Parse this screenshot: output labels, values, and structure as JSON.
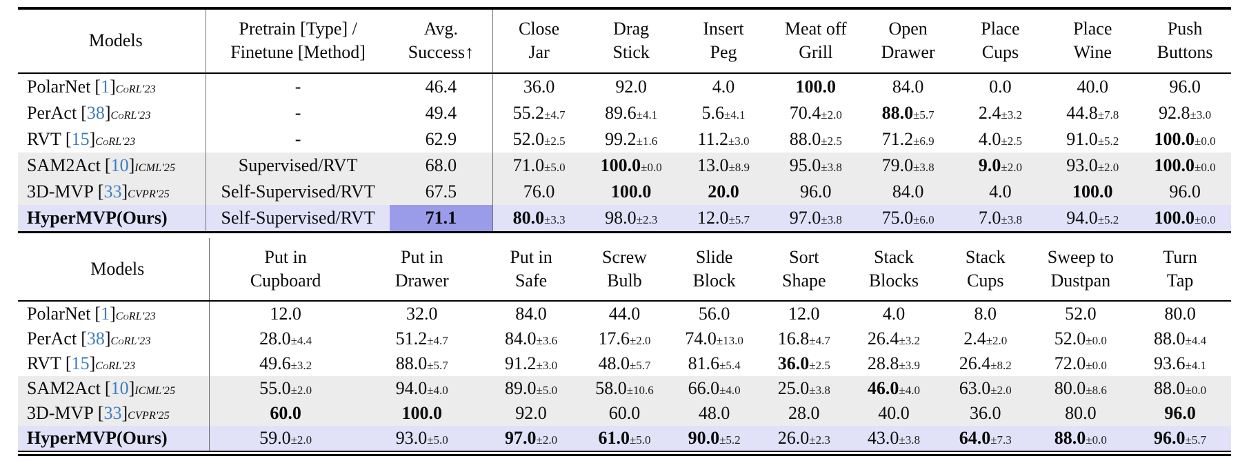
{
  "colors": {
    "citation_blue": "#3d7dbf",
    "row_shade_gray": "#ececec",
    "row_highlight_lavender": "#e1e2f8",
    "avg_cell_highlight": "#9b9ce9"
  },
  "citation_brackets": {
    "open": "[",
    "close": "]"
  },
  "table1": {
    "models_header": "Models",
    "pretrain_header": [
      "Pretrain [Type] /",
      "Finetune [Method]"
    ],
    "avg_header": [
      "Avg.",
      "Success↑"
    ],
    "task_headers": [
      [
        "Close",
        "Jar"
      ],
      [
        "Drag",
        "Stick"
      ],
      [
        "Insert",
        "Peg"
      ],
      [
        "Meat off",
        "Grill"
      ],
      [
        "Open",
        "Drawer"
      ],
      [
        "Place",
        "Cups"
      ],
      [
        "Place",
        "Wine"
      ],
      [
        "Push",
        "Buttons"
      ]
    ],
    "rows": [
      {
        "model": "PolarNet",
        "cite_num": "1",
        "venue": "CoRL'23",
        "model_bold": false,
        "bg": "white",
        "pretrain": "-",
        "avg": {
          "v": "46.4",
          "bold": false,
          "hl": false
        },
        "cells": [
          {
            "v": "36.0"
          },
          {
            "v": "92.0"
          },
          {
            "v": "4.0"
          },
          {
            "v": "100.0",
            "bold": true
          },
          {
            "v": "84.0"
          },
          {
            "v": "0.0"
          },
          {
            "v": "40.0"
          },
          {
            "v": "96.0"
          }
        ]
      },
      {
        "model": "PerAct",
        "cite_num": "38",
        "venue": "CoRL'23",
        "model_bold": false,
        "bg": "white",
        "pretrain": "-",
        "avg": {
          "v": "49.4",
          "bold": false,
          "hl": false
        },
        "cells": [
          {
            "v": "55.2",
            "pm": "±4.7"
          },
          {
            "v": "89.6",
            "pm": "±4.1"
          },
          {
            "v": "5.6",
            "pm": "±4.1"
          },
          {
            "v": "70.4",
            "pm": "±2.0"
          },
          {
            "v": "88.0",
            "pm": "±5.7",
            "bold": true
          },
          {
            "v": "2.4",
            "pm": "±3.2"
          },
          {
            "v": "44.8",
            "pm": "±7.8"
          },
          {
            "v": "92.8",
            "pm": "±3.0"
          }
        ]
      },
      {
        "model": "RVT",
        "cite_num": "15",
        "venue": "CoRL'23",
        "model_bold": false,
        "bg": "white",
        "pretrain": "-",
        "avg": {
          "v": "62.9",
          "bold": false,
          "hl": false
        },
        "cells": [
          {
            "v": "52.0",
            "pm": "±2.5"
          },
          {
            "v": "99.2",
            "pm": "±1.6"
          },
          {
            "v": "11.2",
            "pm": "±3.0"
          },
          {
            "v": "88.0",
            "pm": "±2.5"
          },
          {
            "v": "71.2",
            "pm": "±6.9"
          },
          {
            "v": "4.0",
            "pm": "±2.5"
          },
          {
            "v": "91.0",
            "pm": "±5.2"
          },
          {
            "v": "100.0",
            "pm": "±0.0",
            "bold": true
          }
        ]
      },
      {
        "model": "SAM2Act",
        "cite_num": "10",
        "venue": "ICML'25",
        "model_bold": false,
        "bg": "gray",
        "pretrain": "Supervised/RVT",
        "avg": {
          "v": "68.0",
          "bold": false,
          "hl": false
        },
        "cells": [
          {
            "v": "71.0",
            "pm": "±5.0"
          },
          {
            "v": "100.0",
            "pm": "±0.0",
            "bold": true
          },
          {
            "v": "13.0",
            "pm": "±8.9"
          },
          {
            "v": "95.0",
            "pm": "±3.8"
          },
          {
            "v": "79.0",
            "pm": "±3.8"
          },
          {
            "v": "9.0",
            "pm": "±2.0",
            "bold": true
          },
          {
            "v": "93.0",
            "pm": "±2.0"
          },
          {
            "v": "100.0",
            "pm": "±0.0",
            "bold": true
          }
        ]
      },
      {
        "model": "3D-MVP",
        "cite_num": "33",
        "venue": "CVPR'25",
        "model_bold": false,
        "bg": "gray",
        "pretrain": "Self-Supervised/RVT",
        "avg": {
          "v": "67.5",
          "bold": false,
          "hl": false
        },
        "cells": [
          {
            "v": "76.0"
          },
          {
            "v": "100.0",
            "bold": true
          },
          {
            "v": "20.0",
            "bold": true
          },
          {
            "v": "96.0"
          },
          {
            "v": "84.0"
          },
          {
            "v": "4.0"
          },
          {
            "v": "100.0",
            "bold": true
          },
          {
            "v": "96.0"
          }
        ]
      },
      {
        "model": "HyperMVP(Ours)",
        "cite_num": "",
        "venue": "",
        "model_bold": true,
        "bg": "lavender",
        "pretrain": "Self-Supervised/RVT",
        "avg": {
          "v": "71.1",
          "bold": true,
          "hl": true
        },
        "cells": [
          {
            "v": "80.0",
            "pm": "±3.3",
            "bold": true
          },
          {
            "v": "98.0",
            "pm": "±2.3"
          },
          {
            "v": "12.0",
            "pm": "±5.7"
          },
          {
            "v": "97.0",
            "pm": "±3.8"
          },
          {
            "v": "75.0",
            "pm": "±6.0"
          },
          {
            "v": "7.0",
            "pm": "±3.8"
          },
          {
            "v": "94.0",
            "pm": "±5.2"
          },
          {
            "v": "100.0",
            "pm": "±0.0",
            "bold": true
          }
        ]
      }
    ]
  },
  "table2": {
    "models_header": "Models",
    "task_headers": [
      [
        "Put in",
        "Cupboard"
      ],
      [
        "Put in",
        "Drawer"
      ],
      [
        "Put in",
        "Safe"
      ],
      [
        "Screw",
        "Bulb"
      ],
      [
        "Slide",
        "Block"
      ],
      [
        "Sort",
        "Shape"
      ],
      [
        "Stack",
        "Blocks"
      ],
      [
        "Stack",
        "Cups"
      ],
      [
        "Sweep to",
        "Dustpan"
      ],
      [
        "Turn",
        "Tap"
      ]
    ],
    "rows": [
      {
        "model": "PolarNet",
        "cite_num": "1",
        "venue": "CoRL'23",
        "model_bold": false,
        "bg": "white",
        "cells": [
          {
            "v": "12.0"
          },
          {
            "v": "32.0"
          },
          {
            "v": "84.0"
          },
          {
            "v": "44.0"
          },
          {
            "v": "56.0"
          },
          {
            "v": "12.0"
          },
          {
            "v": "4.0"
          },
          {
            "v": "8.0"
          },
          {
            "v": "52.0"
          },
          {
            "v": "80.0"
          }
        ]
      },
      {
        "model": "PerAct",
        "cite_num": "38",
        "venue": "CoRL'23",
        "model_bold": false,
        "bg": "white",
        "cells": [
          {
            "v": "28.0",
            "pm": "±4.4"
          },
          {
            "v": "51.2",
            "pm": "±4.7"
          },
          {
            "v": "84.0",
            "pm": "±3.6"
          },
          {
            "v": "17.6",
            "pm": "±2.0"
          },
          {
            "v": "74.0",
            "pm": "±13.0"
          },
          {
            "v": "16.8",
            "pm": "±4.7"
          },
          {
            "v": "26.4",
            "pm": "±3.2"
          },
          {
            "v": "2.4",
            "pm": "±2.0"
          },
          {
            "v": "52.0",
            "pm": "±0.0"
          },
          {
            "v": "88.0",
            "pm": "±4.4"
          }
        ]
      },
      {
        "model": "RVT",
        "cite_num": "15",
        "venue": "CoRL'23",
        "model_bold": false,
        "bg": "white",
        "cells": [
          {
            "v": "49.6",
            "pm": "±3.2"
          },
          {
            "v": "88.0",
            "pm": "±5.7"
          },
          {
            "v": "91.2",
            "pm": "±3.0"
          },
          {
            "v": "48.0",
            "pm": "±5.7"
          },
          {
            "v": "81.6",
            "pm": "±5.4"
          },
          {
            "v": "36.0",
            "pm": "±2.5",
            "bold": true
          },
          {
            "v": "28.8",
            "pm": "±3.9"
          },
          {
            "v": "26.4",
            "pm": "±8.2"
          },
          {
            "v": "72.0",
            "pm": "±0.0"
          },
          {
            "v": "93.6",
            "pm": "±4.1"
          }
        ]
      },
      {
        "model": "SAM2Act",
        "cite_num": "10",
        "venue": "ICML'25",
        "model_bold": false,
        "bg": "gray",
        "cells": [
          {
            "v": "55.0",
            "pm": "±2.0"
          },
          {
            "v": "94.0",
            "pm": "±4.0"
          },
          {
            "v": "89.0",
            "pm": "±5.0"
          },
          {
            "v": "58.0",
            "pm": "±10.6"
          },
          {
            "v": "66.0",
            "pm": "±4.0"
          },
          {
            "v": "25.0",
            "pm": "±3.8"
          },
          {
            "v": "46.0",
            "pm": "±4.0",
            "bold": true
          },
          {
            "v": "63.0",
            "pm": "±2.0"
          },
          {
            "v": "80.0",
            "pm": "±8.6"
          },
          {
            "v": "88.0",
            "pm": "±0.0"
          }
        ]
      },
      {
        "model": "3D-MVP",
        "cite_num": "33",
        "venue": "CVPR'25",
        "model_bold": false,
        "bg": "gray",
        "cells": [
          {
            "v": "60.0",
            "bold": true
          },
          {
            "v": "100.0",
            "bold": true
          },
          {
            "v": "92.0"
          },
          {
            "v": "60.0"
          },
          {
            "v": "48.0"
          },
          {
            "v": "28.0"
          },
          {
            "v": "40.0"
          },
          {
            "v": "36.0"
          },
          {
            "v": "80.0"
          },
          {
            "v": "96.0",
            "bold": true
          }
        ]
      },
      {
        "model": "HyperMVP(Ours)",
        "cite_num": "",
        "venue": "",
        "model_bold": true,
        "bg": "lavender",
        "cells": [
          {
            "v": "59.0",
            "pm": "±2.0"
          },
          {
            "v": "93.0",
            "pm": "±5.0"
          },
          {
            "v": "97.0",
            "pm": "±2.0",
            "bold": true
          },
          {
            "v": "61.0",
            "pm": "±5.0",
            "bold": true
          },
          {
            "v": "90.0",
            "pm": "±5.2",
            "bold": true
          },
          {
            "v": "26.0",
            "pm": "±2.3"
          },
          {
            "v": "43.0",
            "pm": "±3.8"
          },
          {
            "v": "64.0",
            "pm": "±7.3",
            "bold": true
          },
          {
            "v": "88.0",
            "pm": "±0.0",
            "bold": true
          },
          {
            "v": "96.0",
            "pm": "±5.7",
            "bold": true
          }
        ]
      }
    ]
  }
}
